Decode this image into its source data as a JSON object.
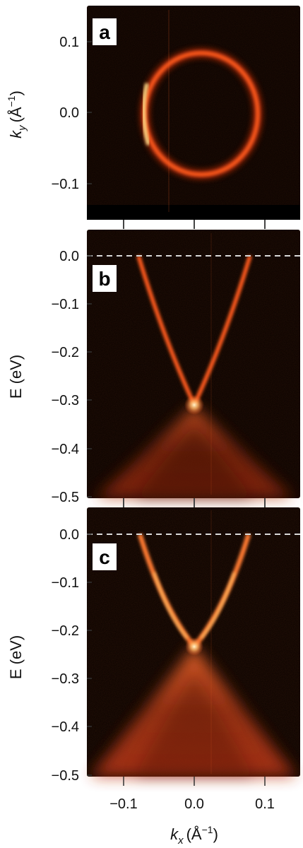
{
  "chart_data": [
    {
      "panel": "a",
      "type": "heatmap",
      "description_ring": {
        "center": [
          0.0,
          0.0
        ],
        "radius_x": 0.073,
        "radius_y": 0.077
      },
      "xlim": [
        -0.15,
        0.15
      ],
      "ylim": [
        -0.15,
        0.15
      ],
      "yticks": [
        0.1,
        0.0,
        -0.1
      ],
      "ytick_labels": [
        "0.1",
        "0.0",
        "−0.1"
      ],
      "xticks": [
        -0.1,
        0.0,
        0.1
      ],
      "ylabel_main": "k",
      "ylabel_sub": "y",
      "ylabel_unit": "(Å",
      "ylabel_exp": "−1",
      "ylabel_close": ")"
    },
    {
      "panel": "b",
      "type": "heatmap",
      "dirac_point": [
        0.0,
        -0.27
      ],
      "fermi_crossing_kx": [
        -0.075,
        0.075
      ],
      "xlim": [
        -0.15,
        0.15
      ],
      "ylim": [
        -0.5,
        0.03
      ],
      "yticks": [
        0.0,
        -0.1,
        -0.2,
        -0.3,
        -0.4,
        -0.5
      ],
      "ytick_labels": [
        "0.0",
        "−0.1",
        "−0.2",
        "−0.3",
        "−0.4",
        "−0.5"
      ],
      "xticks": [
        -0.1,
        0.0,
        0.1
      ],
      "fermi_level": 0.0,
      "ylabel": "E (eV)"
    },
    {
      "panel": "c",
      "type": "heatmap",
      "dirac_point": [
        0.0,
        -0.23
      ],
      "fermi_crossing_kx": [
        -0.075,
        0.075
      ],
      "xlim": [
        -0.15,
        0.15
      ],
      "ylim": [
        -0.5,
        0.03
      ],
      "yticks": [
        0.0,
        -0.1,
        -0.2,
        -0.3,
        -0.4,
        -0.5
      ],
      "ytick_labels": [
        "0.0",
        "−0.1",
        "−0.2",
        "−0.3",
        "−0.4",
        "−0.5"
      ],
      "xticks": [
        -0.1,
        0.0,
        0.1
      ],
      "xtick_labels": [
        "−0.1",
        "0.0",
        "0.1"
      ],
      "fermi_level": 0.0,
      "ylabel": "E (eV)",
      "xlabel_main": "k",
      "xlabel_sub": "x",
      "xlabel_unit": "(Å",
      "xlabel_exp": "−1",
      "xlabel_close": ")"
    }
  ],
  "colors": {
    "background": "#0a0200",
    "band": "#ff5a1e",
    "band_bright": "#ffe08a",
    "fermi_line": "#d9d9d9"
  }
}
